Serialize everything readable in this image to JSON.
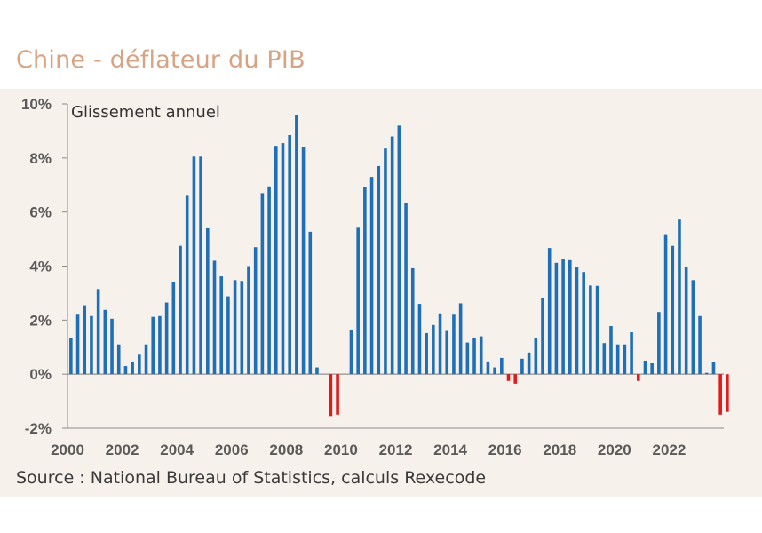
{
  "chart_data": {
    "type": "bar",
    "title": "Chine - déflateur du PIB",
    "annotation": "Glissement annuel",
    "source": "Source : National Bureau of Statistics, calculs Rexecode",
    "ylim": [
      -2,
      10
    ],
    "yticks": [
      "-2%",
      "0%",
      "2%",
      "4%",
      "6%",
      "8%",
      "10%"
    ],
    "ytick_values": [
      -2,
      0,
      2,
      4,
      6,
      8,
      10
    ],
    "xlim": [
      2000,
      2024
    ],
    "xticks": [
      "2000",
      "2002",
      "2004",
      "2006",
      "2008",
      "2010",
      "2012",
      "2014",
      "2016",
      "2018",
      "2020",
      "2022"
    ],
    "xtick_values": [
      2000,
      2002,
      2004,
      2006,
      2008,
      2010,
      2012,
      2014,
      2016,
      2018,
      2020,
      2022
    ],
    "positive_color": "#1f6fb8",
    "negative_color": "#e31a1c",
    "series": [
      {
        "frequency": "quarterly",
        "start": "2000-Q1",
        "values": [
          1.35,
          2.2,
          2.55,
          2.15,
          3.15,
          2.38,
          2.05,
          1.1,
          0.3,
          0.45,
          0.72,
          1.1,
          2.12,
          2.15,
          2.65,
          3.4,
          4.75,
          6.6,
          8.05,
          8.05,
          5.4,
          4.2,
          3.62,
          2.88,
          3.48,
          3.45,
          4.0,
          4.7,
          6.7,
          6.95,
          8.45,
          8.55,
          8.85,
          9.6,
          8.4,
          5.27,
          0.25,
          null,
          -1.55,
          -1.5,
          null,
          1.62,
          5.42,
          6.92,
          7.3,
          7.7,
          8.35,
          8.8,
          9.2,
          6.32,
          3.92,
          2.6,
          1.52,
          1.82,
          2.25,
          1.6,
          2.2,
          2.62,
          1.17,
          1.35,
          1.4,
          0.47,
          0.25,
          0.6,
          -0.25,
          -0.35,
          0.57,
          0.8,
          1.32,
          2.8,
          4.67,
          4.12,
          4.25,
          4.22,
          3.95,
          3.78,
          3.28,
          3.27,
          1.15,
          1.78,
          1.1,
          1.1,
          1.55,
          -0.25,
          0.5,
          0.4,
          2.3,
          5.18,
          4.75,
          5.72,
          3.98,
          3.48,
          2.15,
          0.05,
          0.45,
          -1.5,
          -1.4
        ]
      }
    ]
  }
}
